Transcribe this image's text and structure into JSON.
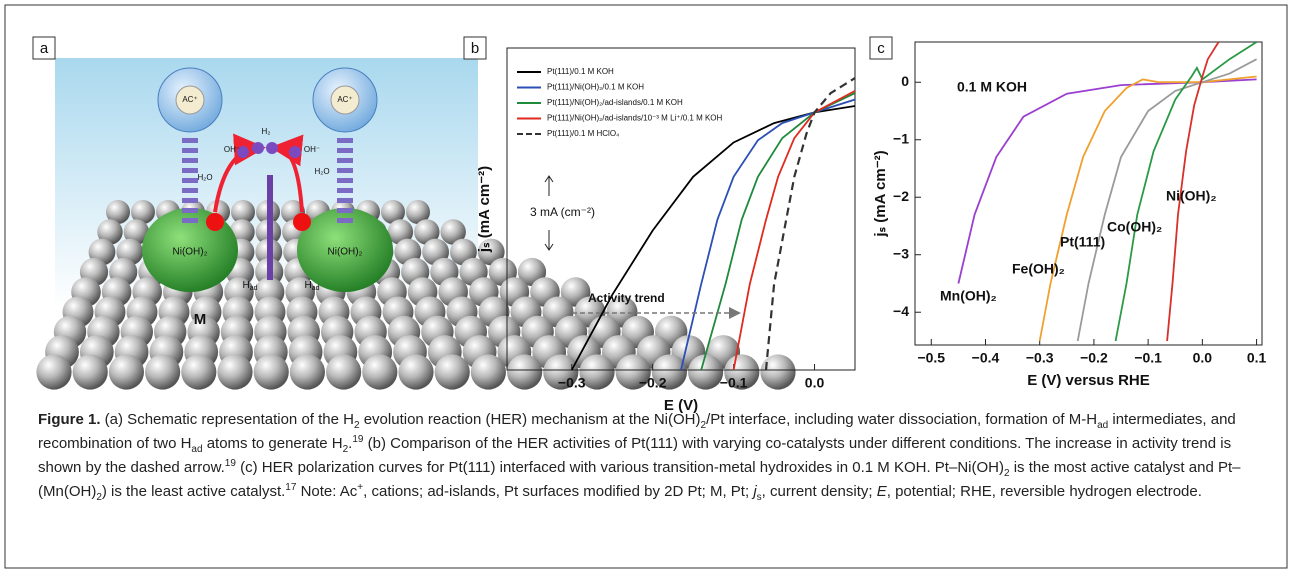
{
  "panel_labels": [
    "a",
    "b",
    "c"
  ],
  "panel_a": {
    "cation": [
      "AC⁺",
      "AC⁺"
    ],
    "water": [
      "H₂O",
      "H₂O"
    ],
    "hydrogen": "H₂",
    "hydroxide": [
      "OH⁻",
      "OH⁻"
    ],
    "hydroxide_island": [
      "Ni(OH)₂",
      "Ni(OH)₂"
    ],
    "adsorbed": [
      {
        "text": "H",
        "sub": "ad"
      },
      {
        "text": "H",
        "sub": "ad"
      }
    ],
    "metal": "M"
  },
  "chart_data": [
    {
      "type": "line",
      "xlabel": "E (V)",
      "ylabel": "jₛ (mA cm⁻²)",
      "xlim": [
        -0.38,
        0.05
      ],
      "ylim": [
        -12,
        3
      ],
      "xticks": [
        {
          "value": -0.3,
          "label": "−0.3"
        },
        {
          "value": -0.2,
          "label": "−0.2"
        },
        {
          "value": -0.1,
          "label": "−0.1"
        },
        {
          "value": 0,
          "label": "0.0"
        }
      ],
      "legend": "upper left",
      "annotations": [
        "3 mA (cm⁻²)",
        "Activity trend"
      ],
      "series": [
        {
          "name": "Pt(111)/0.1 M KOH",
          "color": "#000000",
          "x": [
            -0.3,
            -0.25,
            -0.2,
            -0.15,
            -0.1,
            -0.05,
            0,
            0.05
          ],
          "values": [
            -12,
            -8.5,
            -5.5,
            -3,
            -1.4,
            -0.5,
            0,
            0.3
          ]
        },
        {
          "name": "Pt(111)/Ni(OH)₂/0.1 M KOH",
          "color": "#2b4fb5",
          "x": [
            -0.165,
            -0.14,
            -0.12,
            -0.1,
            -0.07,
            -0.04,
            0,
            0.05
          ],
          "values": [
            -12,
            -8,
            -5,
            -3,
            -1.3,
            -0.5,
            0,
            0.6
          ]
        },
        {
          "name": "Pt(111)/Ni(OH)₂/ad-islands/0.1 M KOH",
          "color": "#1f8a3a",
          "x": [
            -0.14,
            -0.11,
            -0.09,
            -0.07,
            -0.04,
            0,
            0.05
          ],
          "values": [
            -12,
            -8,
            -5,
            -3,
            -1.2,
            0,
            0.9
          ]
        },
        {
          "name": "Pt(111)/Ni(OH)₂/ad-islands/10⁻³ M Li⁺/0.1 M KOH",
          "color": "#e02a1f",
          "x": [
            -0.1,
            -0.08,
            -0.06,
            -0.045,
            -0.025,
            0,
            0.05
          ],
          "values": [
            -12,
            -8,
            -5,
            -3,
            -1.2,
            0,
            1.0
          ]
        },
        {
          "name": "Pt(111)/0.1 M HClO₄",
          "color": "#333333",
          "dash": true,
          "x": [
            -0.06,
            -0.05,
            -0.035,
            -0.025,
            -0.01,
            0,
            0.02,
            0.05
          ],
          "values": [
            -12,
            -8,
            -5,
            -3,
            -1,
            0,
            0.9,
            1.6
          ]
        }
      ]
    },
    {
      "type": "line",
      "xlabel": "E (V) versus RHE",
      "ylabel": "jₛ (mA cm⁻²)",
      "xlim": [
        -0.53,
        0.11
      ],
      "ylim": [
        -4.57,
        0.7
      ],
      "xticks": [
        {
          "value": -0.5,
          "label": "−0.5"
        },
        {
          "value": -0.4,
          "label": "−0.4"
        },
        {
          "value": -0.3,
          "label": "−0.3"
        },
        {
          "value": -0.2,
          "label": "−0.2"
        },
        {
          "value": -0.1,
          "label": "−0.1"
        },
        {
          "value": 0,
          "label": "0.0"
        },
        0.1
      ],
      "yticks": [
        {
          "value": -4,
          "label": "−4"
        },
        {
          "value": -3,
          "label": "−3"
        },
        {
          "value": -2,
          "label": "−2"
        },
        {
          "value": -1,
          "label": "−1"
        },
        0
      ],
      "annotations": [
        "0.1 M KOH"
      ],
      "series": [
        {
          "name": "Mn(OH)₂",
          "color": "#9a3fd0",
          "x": [
            -0.45,
            -0.42,
            -0.38,
            -0.33,
            -0.25,
            -0.15,
            0,
            0.1
          ],
          "values": [
            -3.5,
            -2.3,
            -1.3,
            -0.6,
            -0.2,
            -0.05,
            0,
            0.05
          ]
        },
        {
          "name": "Fe(OH)₂",
          "color": "#f0a030",
          "x": [
            -0.3,
            -0.28,
            -0.25,
            -0.22,
            -0.18,
            -0.14,
            -0.11,
            -0.08,
            0,
            0.1
          ],
          "values": [
            -4.5,
            -3.5,
            -2.3,
            -1.3,
            -0.5,
            -0.1,
            0.05,
            0,
            0,
            0.1
          ]
        },
        {
          "name": "Pt(111)",
          "color": "#9a9a9a",
          "x": [
            -0.23,
            -0.21,
            -0.18,
            -0.15,
            -0.1,
            -0.05,
            0,
            0.05,
            0.1
          ],
          "values": [
            -4.5,
            -3.5,
            -2.3,
            -1.3,
            -0.5,
            -0.15,
            0,
            0.15,
            0.4
          ]
        },
        {
          "name": "Co(OH)₂",
          "color": "#2a9a45",
          "x": [
            -0.16,
            -0.14,
            -0.12,
            -0.09,
            -0.05,
            -0.02,
            -0.01,
            0,
            0.05,
            0.1
          ],
          "values": [
            -4.5,
            -3.5,
            -2.3,
            -1.2,
            -0.3,
            0.1,
            0.25,
            0.05,
            0.4,
            0.7
          ]
        },
        {
          "name": "Ni(OH)₂",
          "color": "#d8302a",
          "x": [
            -0.065,
            -0.055,
            -0.045,
            -0.03,
            -0.015,
            0,
            0.01,
            0.03
          ],
          "values": [
            -4.5,
            -3.5,
            -2.3,
            -1.2,
            -0.4,
            0.1,
            0.4,
            0.7
          ]
        }
      ]
    }
  ],
  "caption": {
    "parts": [
      {
        "b": "Figure 1."
      },
      " (a) Schematic representation of the H",
      {
        "sub": "2"
      },
      " evolution reaction (HER) mechanism at the Ni(OH)",
      {
        "sub": "2"
      },
      "/Pt interface, including water dissociation, formation of M-H",
      {
        "sub": "ad"
      },
      " intermediates, and recombination of two H",
      {
        "sub": "ad"
      },
      " atoms to generate H",
      {
        "sub": "2"
      },
      ".",
      {
        "sup": "19"
      },
      " (b) Comparison of the HER activities of Pt(111) with varying co-catalysts under different conditions. The increase in activity trend is shown by the dashed arrow.",
      {
        "sup": "19"
      },
      " (c) HER polarization curves for Pt(111) interfaced with various transition-metal hydroxides in 0.1 M KOH. Pt–Ni(OH)",
      {
        "sub": "2"
      },
      " is the most active catalyst and Pt–(Mn(OH)",
      {
        "sub": "2"
      },
      ") is the least active catalyst.",
      {
        "sup": "17"
      },
      " Note: Ac",
      {
        "sup": "+"
      },
      ", cations; ad-islands, Pt surfaces modified by 2D Pt; M, Pt; ",
      {
        "i": "j"
      },
      {
        "sub": "s"
      },
      ", current density; ",
      {
        "i": "E"
      },
      ", potential; RHE, reversible hydrogen electrode."
    ]
  }
}
